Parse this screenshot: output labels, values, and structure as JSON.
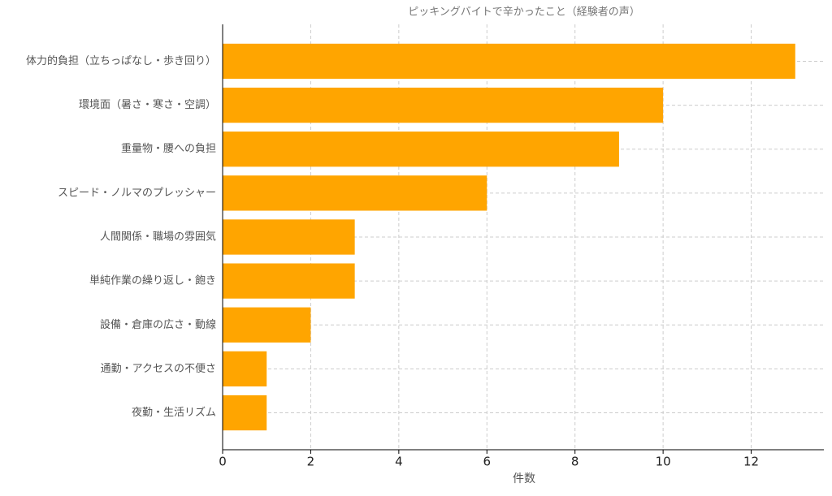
{
  "chart_data": {
    "type": "barh",
    "title": "ピッキングバイトで辛かったこと（経験者の声）",
    "x_label": "件数",
    "categories": [
      "体力的負担（立ちっぱなし・歩き回り）",
      "環境面（暑さ・寒さ・空調）",
      "重量物・腰への負担",
      "スピード・ノルマのプレッシャー",
      "人間関係・職場の雰囲気",
      "単純作業の繰り返し・飽き",
      "設備・倉庫の広さ・動線",
      "通勤・アクセスの不便さ",
      "夜勤・生活リズム"
    ],
    "values": [
      13,
      10,
      9,
      6,
      3,
      3,
      2,
      1,
      1
    ],
    "color": "#ffa500",
    "xlim": [
      0,
      13.65
    ],
    "xticks": [
      0,
      2,
      4,
      6,
      8,
      10,
      12
    ],
    "grid": true
  }
}
